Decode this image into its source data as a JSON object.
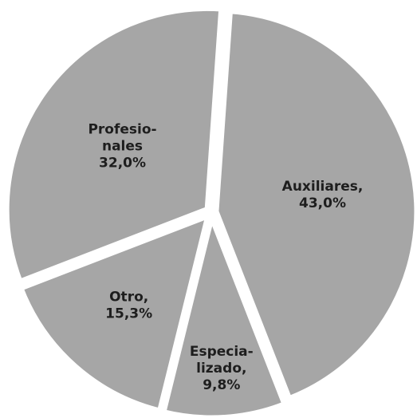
{
  "chart_data": {
    "type": "pie",
    "categories": [
      [
        "Auxiliares,"
      ],
      [
        "Especia-",
        "lizado,"
      ],
      [
        "Otro,"
      ],
      [
        "Profesio-",
        "nales"
      ]
    ],
    "values": [
      43.0,
      9.8,
      15.3,
      32.0
    ],
    "value_labels": [
      "43,0%",
      "9,8%",
      "15,3%",
      "32,0%"
    ],
    "color": "#a6a6a6"
  }
}
